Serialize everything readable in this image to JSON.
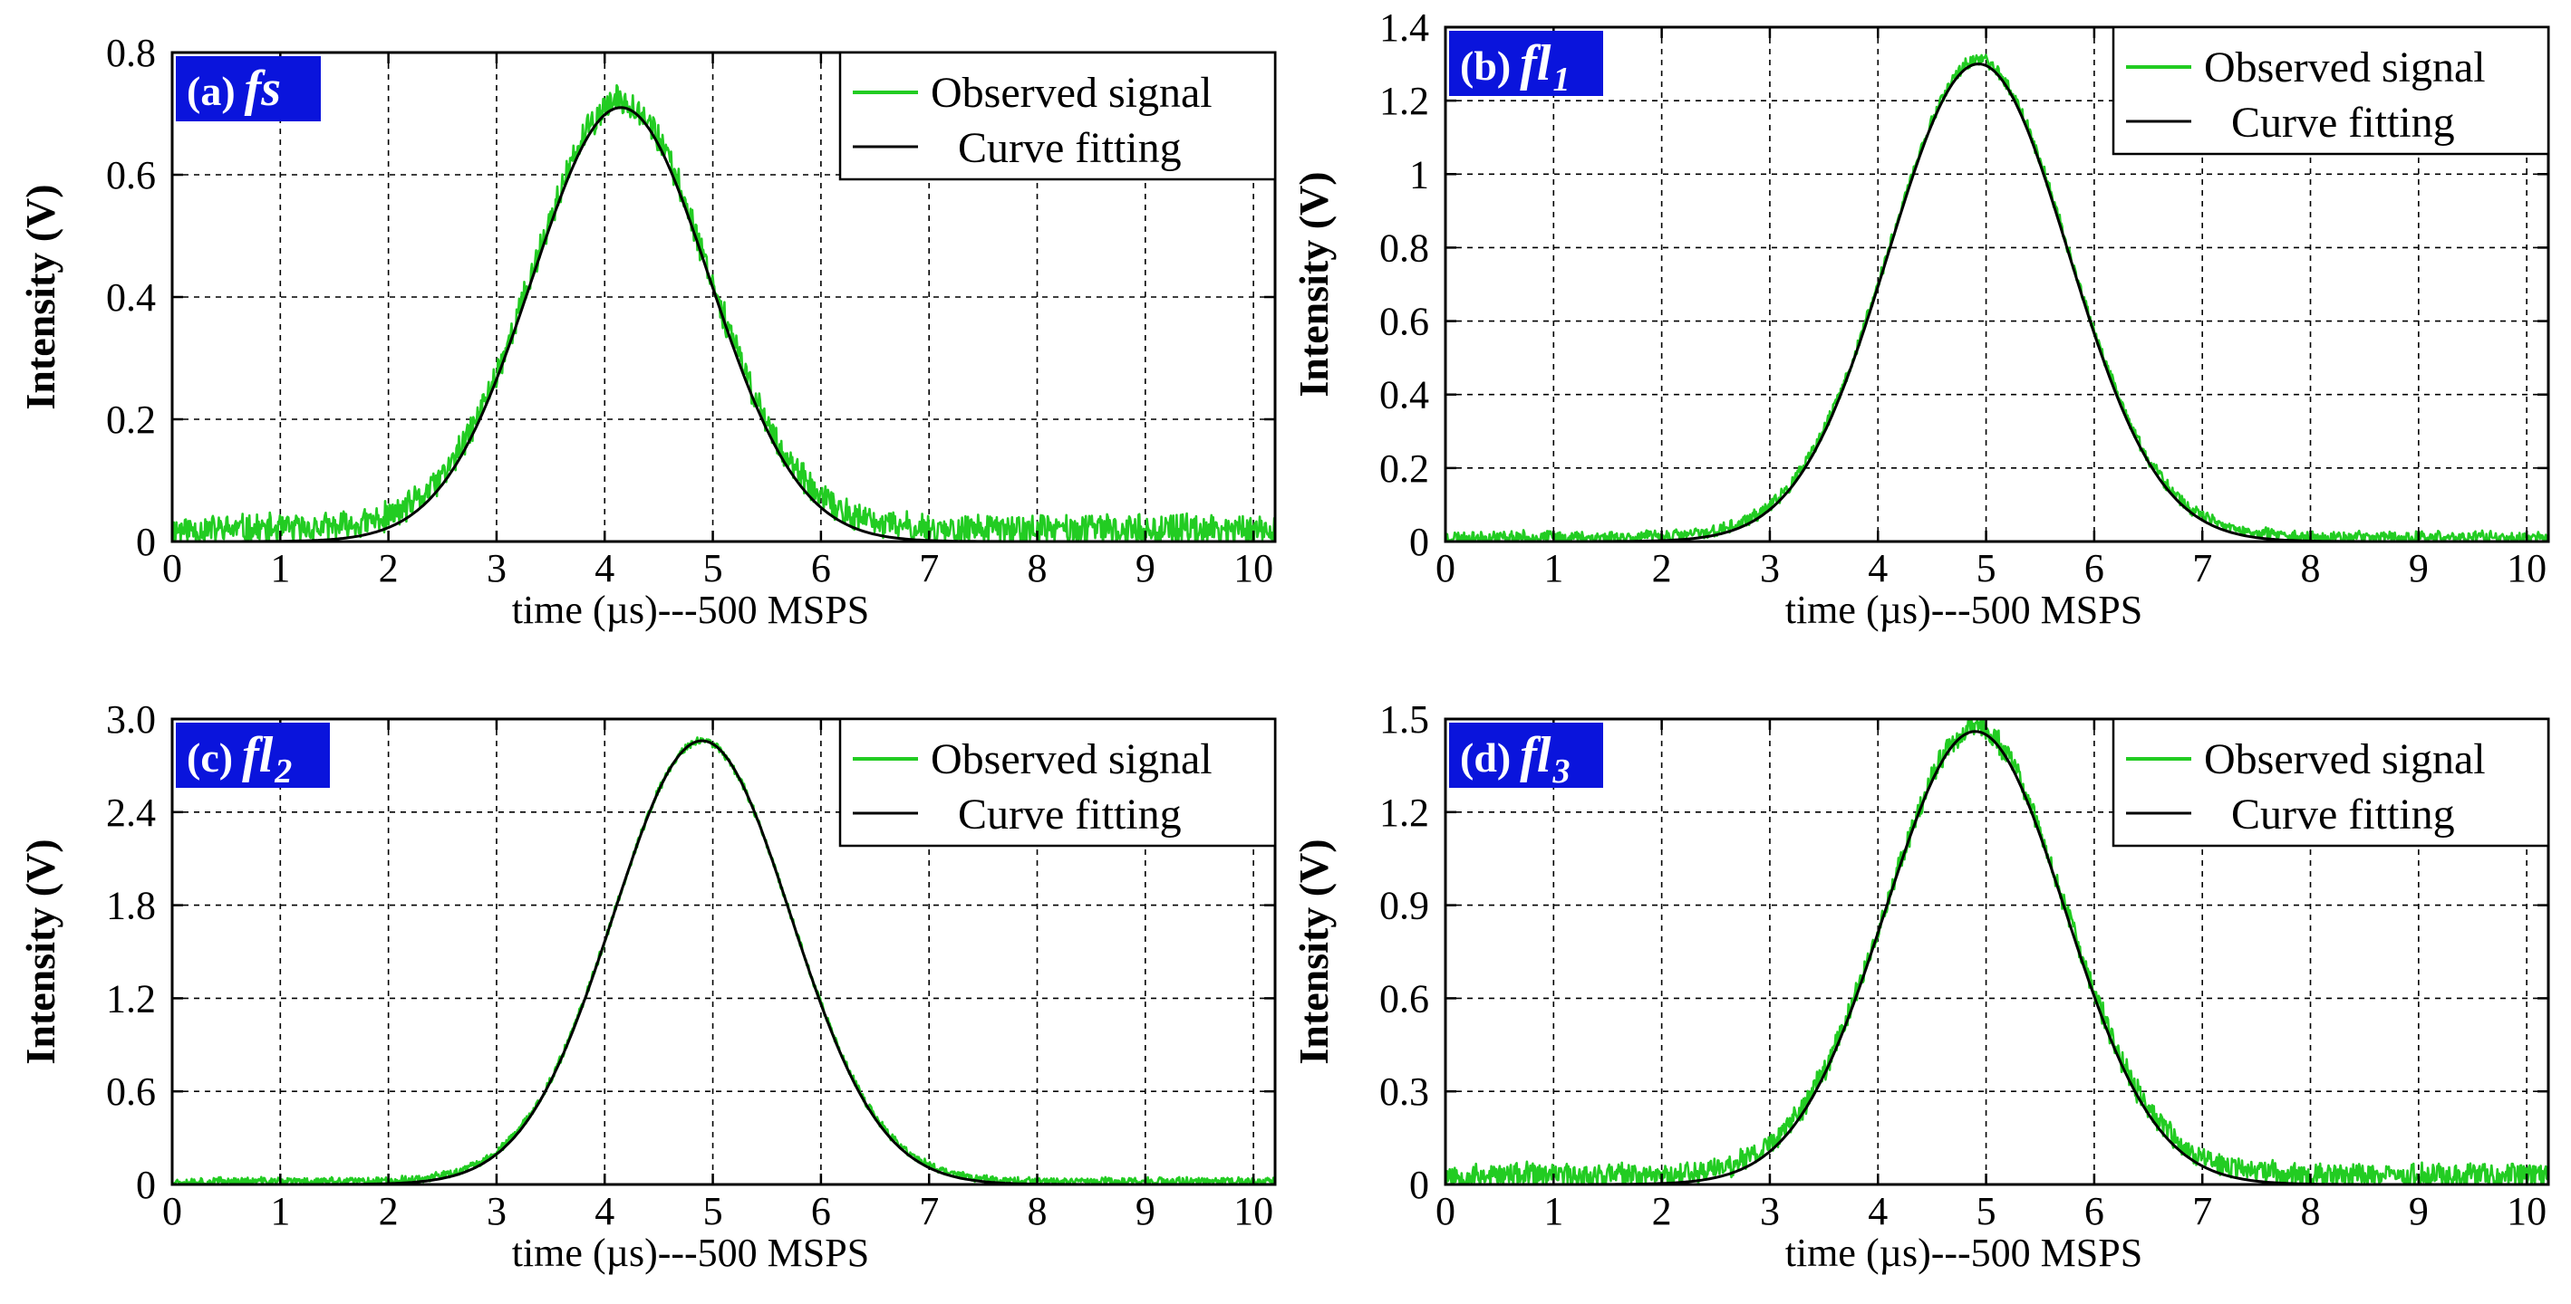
{
  "figure": {
    "colors": {
      "observed": "#22cc22",
      "fit": "#000000",
      "tag_background": "#0a14dc",
      "grid": "#000000"
    }
  },
  "chart_data": [
    {
      "type": "line",
      "panel": "a",
      "tag_prefix": "(a)",
      "tag_name": "fs",
      "tag_sub": "",
      "xlabel": "time (µs)---500 MSPS",
      "ylabel": "Intensity (V)",
      "xlim": [
        0,
        10.2
      ],
      "ylim": [
        0,
        0.8
      ],
      "xticks": [
        "0",
        "1",
        "2",
        "3",
        "4",
        "5",
        "6",
        "7",
        "8",
        "9",
        "10"
      ],
      "yticks": [
        0,
        0.2,
        0.4,
        0.6,
        0.8
      ],
      "ytick_labels": [
        "0",
        "0.2",
        "0.4",
        "0.6",
        "0.8"
      ],
      "legend": [
        "Observed signal",
        "Curve fitting"
      ],
      "legend_position": "top-right",
      "grid": true,
      "series": [
        {
          "name": "Observed signal",
          "kind": "noisy-gaussian",
          "amplitude": 0.72,
          "center": 4.15,
          "sigma": 0.82,
          "baseline": 0.02,
          "noise": 0.028,
          "seed": 11
        },
        {
          "name": "Curve fitting",
          "kind": "gaussian",
          "amplitude": 0.71,
          "center": 4.15,
          "sigma": 0.82,
          "baseline": 0
        }
      ]
    },
    {
      "type": "line",
      "panel": "b",
      "tag_prefix": "(b)",
      "tag_name": "fl",
      "tag_sub": "1",
      "xlabel": "time (µs)---500 MSPS",
      "ylabel": "Intensity (V)",
      "xlim": [
        0,
        10.2
      ],
      "ylim": [
        0,
        1.4
      ],
      "xticks": [
        "0",
        "1",
        "2",
        "3",
        "4",
        "5",
        "6",
        "7",
        "8",
        "9",
        "10"
      ],
      "yticks": [
        0,
        0.2,
        0.4,
        0.6,
        0.8,
        1,
        1.2,
        1.4
      ],
      "ytick_labels": [
        "0",
        "0.2",
        "0.4",
        "0.6",
        "0.8",
        "1",
        "1.2",
        "1.4"
      ],
      "legend": [
        "Observed signal",
        "Curve fitting"
      ],
      "legend_position": "top-right",
      "grid": true,
      "series": [
        {
          "name": "Observed signal",
          "kind": "noisy-gaussian",
          "amplitude": 1.31,
          "center": 4.93,
          "sigma": 0.83,
          "baseline": 0.012,
          "noise": 0.02,
          "seed": 23
        },
        {
          "name": "Curve fitting",
          "kind": "gaussian",
          "amplitude": 1.3,
          "center": 4.93,
          "sigma": 0.83,
          "baseline": 0
        }
      ]
    },
    {
      "type": "line",
      "panel": "c",
      "tag_prefix": "(c)",
      "tag_name": "fl",
      "tag_sub": "2",
      "xlabel": "time (µs)---500 MSPS",
      "ylabel": "Intensity (V)",
      "xlim": [
        0,
        10.2
      ],
      "ylim": [
        0,
        3.0
      ],
      "xticks": [
        "0",
        "1",
        "2",
        "3",
        "4",
        "5",
        "6",
        "7",
        "8",
        "9",
        "10"
      ],
      "yticks": [
        0,
        0.6,
        1.2,
        1.8,
        2.4,
        3.0
      ],
      "ytick_labels": [
        "0",
        "0.6",
        "1.2",
        "1.8",
        "2.4",
        "3.0"
      ],
      "legend": [
        "Observed signal",
        "Curve fitting"
      ],
      "legend_position": "top-right",
      "grid": true,
      "series": [
        {
          "name": "Observed signal",
          "kind": "noisy-gaussian",
          "amplitude": 2.86,
          "center": 4.9,
          "sigma": 0.82,
          "baseline": 0.02,
          "noise": 0.03,
          "seed": 37
        },
        {
          "name": "Curve fitting",
          "kind": "gaussian",
          "amplitude": 2.86,
          "center": 4.9,
          "sigma": 0.82,
          "baseline": 0
        }
      ]
    },
    {
      "type": "line",
      "panel": "d",
      "tag_prefix": "(d)",
      "tag_name": "fl",
      "tag_sub": "3",
      "xlabel": "time (µs)---500 MSPS",
      "ylabel": "Intensity (V)",
      "xlim": [
        0,
        10.2
      ],
      "ylim": [
        0,
        1.5
      ],
      "xticks": [
        "0",
        "1",
        "2",
        "3",
        "4",
        "5",
        "6",
        "7",
        "8",
        "9",
        "10"
      ],
      "yticks": [
        0,
        0.3,
        0.6,
        0.9,
        1.2,
        1.5
      ],
      "ytick_labels": [
        "0",
        "0.3",
        "0.6",
        "0.9",
        "1.2",
        "1.5"
      ],
      "legend": [
        "Observed signal",
        "Curve fitting"
      ],
      "legend_position": "top-right",
      "grid": true,
      "series": [
        {
          "name": "Observed signal",
          "kind": "noisy-gaussian",
          "amplitude": 1.47,
          "center": 4.9,
          "sigma": 0.83,
          "baseline": 0.03,
          "noise": 0.045,
          "seed": 53
        },
        {
          "name": "Curve fitting",
          "kind": "gaussian",
          "amplitude": 1.46,
          "center": 4.9,
          "sigma": 0.83,
          "baseline": 0
        }
      ]
    }
  ]
}
